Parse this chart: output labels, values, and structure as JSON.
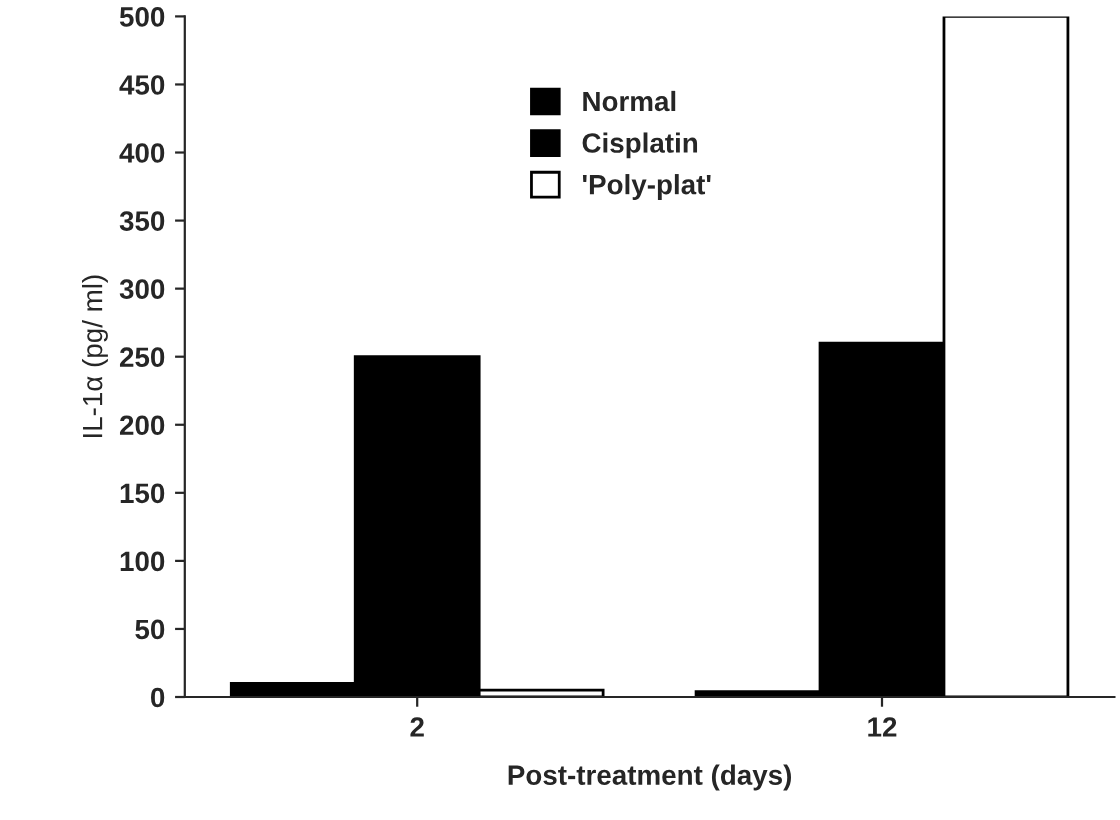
{
  "chart_data": {
    "type": "bar",
    "xlabel": "Post-treatment (days)",
    "ylabel": "IL-1α (pg/ ml)",
    "categories": [
      "2",
      "12"
    ],
    "series": [
      {
        "name": "Normal",
        "color": "#000000",
        "values": [
          10,
          4
        ]
      },
      {
        "name": "Cisplatin",
        "color": "#000000",
        "values": [
          250,
          260
        ]
      },
      {
        "name": "'Poly-plat'",
        "color": "#ffffff",
        "values": [
          5,
          500
        ]
      }
    ],
    "ylim": [
      0,
      500
    ],
    "yticks": [
      0,
      50,
      100,
      150,
      200,
      250,
      300,
      350,
      400,
      450,
      500
    ],
    "grid": false,
    "legend": "top"
  }
}
